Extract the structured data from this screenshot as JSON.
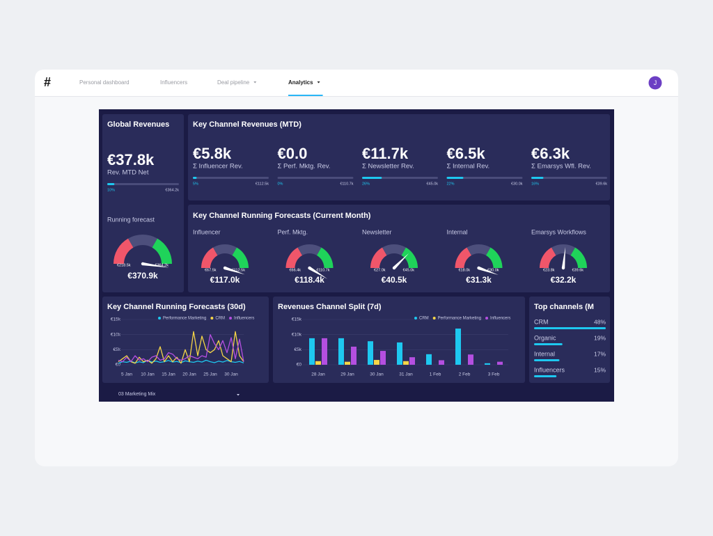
{
  "nav": {
    "logo": "#",
    "tabs": [
      {
        "label": "Personal dashboard"
      },
      {
        "label": "Influencers"
      },
      {
        "label": "Deal pipeline",
        "dropdown": true
      },
      {
        "label": "Analytics",
        "dropdown": true
      }
    ],
    "active": 3,
    "avatar": "J"
  },
  "global": {
    "title": "Global Revenues",
    "value": "€37.8k",
    "caption": "Rev. MTD Net",
    "progress": {
      "value": 10,
      "label": "10%"
    },
    "target": "€364.2k",
    "forecast": {
      "title": "Running forecast",
      "min": {
        "value": 218.5,
        "label": "€218.5k"
      },
      "max": {
        "value": 364.2,
        "label": "€364.2k"
      },
      "value": {
        "value": 370.9,
        "label": "€370.9k"
      }
    }
  },
  "revenues": {
    "title": "Key Channel Revenues (MTD)",
    "items": [
      {
        "value": "€5.8k",
        "caption": "Σ Influencer Rev.",
        "progress": {
          "value": 5,
          "label": "5%"
        },
        "target": "€112.5k"
      },
      {
        "value": "€0.0",
        "caption": "Σ Perf. Mktg. Rev.",
        "progress": {
          "value": 0,
          "label": "0%"
        },
        "target": "€110.7k"
      },
      {
        "value": "€11.7k",
        "caption": "Σ Newsletter Rev.",
        "progress": {
          "value": 26,
          "label": "26%"
        },
        "target": "€45.0k"
      },
      {
        "value": "€6.5k",
        "caption": "Σ Internal Rev.",
        "progress": {
          "value": 22,
          "label": "22%"
        },
        "target": "€30.0k"
      },
      {
        "value": "€6.3k",
        "caption": "Σ Emarsys Wfl. Rev.",
        "progress": {
          "value": 16,
          "label": "16%"
        },
        "target": "€39.6k"
      }
    ]
  },
  "forecasts": {
    "title": "Key Channel Running Forecasts (Current Month)",
    "gauges": [
      {
        "name": "Influencer",
        "min": {
          "value": 67.5,
          "label": "€67.5k"
        },
        "max": {
          "value": 112.5,
          "label": "€112.5k"
        },
        "value": {
          "value": 117.0,
          "label": "€117.0k"
        }
      },
      {
        "name": "Perf. Mktg.",
        "min": {
          "value": 66.4,
          "label": "€66.4k"
        },
        "max": {
          "value": 110.7,
          "label": "€110.7k"
        },
        "value": {
          "value": 118.4,
          "label": "€118.4k"
        }
      },
      {
        "name": "Newsletter",
        "min": {
          "value": 27.0,
          "label": "€27.0k"
        },
        "max": {
          "value": 45.0,
          "label": "€45.0k"
        },
        "value": {
          "value": 40.5,
          "label": "€40.5k"
        }
      },
      {
        "name": "Internal",
        "min": {
          "value": 18.0,
          "label": "€18.0k"
        },
        "max": {
          "value": 30.0,
          "label": "€30.0k"
        },
        "value": {
          "value": 31.3,
          "label": "€31.3k"
        }
      },
      {
        "name": "Emarsys Workflows",
        "min": {
          "value": 23.8,
          "label": "€23.8k"
        },
        "max": {
          "value": 39.6,
          "label": "€39.6k"
        },
        "value": {
          "value": 32.2,
          "label": "€32.2k"
        }
      }
    ]
  },
  "chart_data": [
    {
      "type": "line",
      "title": "Key Channel Running Forecasts (30d)",
      "categories": [
        null,
        null,
        "5 Jan",
        null,
        null,
        null,
        null,
        "10 Jan",
        null,
        null,
        null,
        null,
        "15 Jan",
        null,
        null,
        null,
        null,
        "20 Jan",
        null,
        null,
        null,
        null,
        "25 Jan",
        null,
        null,
        null,
        null,
        "30 Jan",
        null,
        null,
        null
      ],
      "series": [
        {
          "name": "Performance Marketing",
          "color": "#1ec8f0",
          "values": [
            500,
            1000,
            800,
            1200,
            600,
            1000,
            700,
            1500,
            900,
            1200,
            800,
            1000,
            1400,
            900,
            1100,
            700,
            1300,
            1000,
            800,
            1200,
            900,
            1500,
            1000,
            700,
            1200,
            900,
            1400,
            1000,
            800,
            1100,
            600
          ]
        },
        {
          "name": "CRM",
          "color": "#f5d547",
          "values": [
            1000,
            2000,
            3000,
            1000,
            500,
            2500,
            1000,
            1500,
            500,
            2000,
            6000,
            1000,
            3000,
            1000,
            2500,
            500,
            5000,
            1000,
            11000,
            3000,
            9500,
            5000,
            4000,
            5000,
            8000,
            3000,
            2000,
            1000,
            11000,
            3000,
            1000
          ]
        },
        {
          "name": "Influencers",
          "color": "#b44fe0",
          "values": [
            1500,
            1000,
            2500,
            1000,
            3000,
            1500,
            2000,
            1000,
            2500,
            3000,
            1500,
            2000,
            4000,
            3500,
            2000,
            1500,
            2000,
            3000,
            2500,
            2000,
            3000,
            2500,
            10000,
            7000,
            5000,
            8000,
            4000,
            9000,
            2000,
            8500,
            1000
          ]
        }
      ],
      "ylim": [
        0,
        15000
      ],
      "yticks": [
        {
          "value": 0,
          "label": "€0"
        },
        {
          "value": 5000,
          "label": "€5k"
        },
        {
          "value": 10000,
          "label": "€10k"
        },
        {
          "value": 15000,
          "label": "€15k"
        }
      ],
      "grid": true,
      "legend": "top-right"
    },
    {
      "type": "bar",
      "title": "Revenues Channel Split (7d)",
      "categories": [
        "28 Jan",
        "29 Jan",
        "30 Jan",
        "31 Jan",
        "1 Feb",
        "2 Feb",
        "3 Feb"
      ],
      "series": [
        {
          "name": "CRM",
          "color": "#1ec8f0",
          "values": [
            8800,
            8800,
            7800,
            7400,
            3500,
            12000,
            500
          ]
        },
        {
          "name": "Performance Marketing",
          "color": "#f5d547",
          "values": [
            1200,
            1000,
            1600,
            1200,
            0,
            0,
            0
          ]
        },
        {
          "name": "Influencers",
          "color": "#b44fe0",
          "values": [
            8800,
            6000,
            4600,
            2500,
            1500,
            3400,
            1000
          ]
        }
      ],
      "ylim": [
        0,
        15000
      ],
      "yticks": [
        {
          "value": 0,
          "label": "€0"
        },
        {
          "value": 5000,
          "label": "€5k"
        },
        {
          "value": 10000,
          "label": "€10k"
        },
        {
          "value": 15000,
          "label": "€15k"
        }
      ],
      "grid": true,
      "legend": "top-right"
    }
  ],
  "top_channels": {
    "title": "Top channels (M",
    "rows": [
      {
        "name": "CRM",
        "share": {
          "value": 48,
          "label": "48%"
        }
      },
      {
        "name": "Organic",
        "share": {
          "value": 19,
          "label": "19%"
        }
      },
      {
        "name": "Internal",
        "share": {
          "value": 17,
          "label": "17%"
        }
      },
      {
        "name": "Influencers",
        "share": {
          "value": 15,
          "label": "15%"
        }
      }
    ]
  },
  "footer": {
    "selector": "03 Marketing Mix"
  }
}
